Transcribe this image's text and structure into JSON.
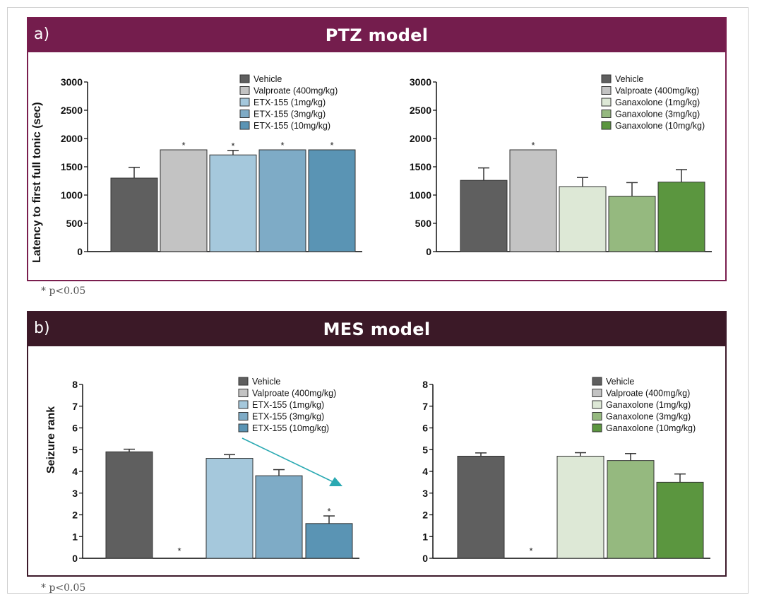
{
  "panel_a": {
    "letter": "a)",
    "title": "PTZ model",
    "note": "* p<0.05"
  },
  "panel_b": {
    "letter": "b)",
    "title": "MES model",
    "note": "* p<0.05"
  },
  "colors": {
    "vehicle": "#5f5f5f",
    "valproate": "#c3c3c3",
    "etx1": "#a5c8dc",
    "etx3": "#7eabc6",
    "etx10": "#5a94b4",
    "gan1": "#dde8d6",
    "gan3": "#95b97f",
    "gan10": "#5b963f",
    "arrow": "#2aa9b2"
  },
  "chart_data": [
    {
      "type": "bar",
      "ylabel": "Latency to first full tonic (sec)",
      "ylim": [
        0,
        3000
      ],
      "yticks": [
        "0",
        "500",
        "1000",
        "1500",
        "2000",
        "2500",
        "3000"
      ],
      "categories": [
        "Vehicle",
        "Valproate (400mg/kg)",
        "ETX-155 (1mg/kg)",
        "ETX-155 (3mg/kg)",
        "ETX-155 (10mg/kg)"
      ],
      "legend": [
        "Vehicle",
        "Valproate (400mg/kg)",
        "ETX-155 (1mg/kg)",
        "ETX-155 (3mg/kg)",
        "ETX-155 (10mg/kg)"
      ],
      "values": [
        1300,
        1800,
        1710,
        1800,
        1800
      ],
      "errors": [
        190,
        0,
        80,
        0,
        0
      ],
      "significant": [
        false,
        true,
        true,
        true,
        true
      ],
      "colors": [
        "vehicle",
        "valproate",
        "etx1",
        "etx3",
        "etx10"
      ],
      "star": "*"
    },
    {
      "type": "bar",
      "ylim": [
        0,
        3000
      ],
      "yticks": [
        "0",
        "500",
        "1000",
        "1500",
        "2000",
        "2500",
        "3000"
      ],
      "categories": [
        "Vehicle",
        "Valproate (400mg/kg)",
        "Ganaxolone (1mg/kg)",
        "Ganaxolone (3mg/kg)",
        "Ganaxolone (10mg/kg)"
      ],
      "legend": [
        "Vehicle",
        "Valproate (400mg/kg)",
        "Ganaxolone (1mg/kg)",
        "Ganaxolone (3mg/kg)",
        "Ganaxolone (10mg/kg)"
      ],
      "values": [
        1260,
        1800,
        1150,
        980,
        1230
      ],
      "errors": [
        220,
        0,
        160,
        240,
        220
      ],
      "significant": [
        false,
        true,
        false,
        false,
        false
      ],
      "colors": [
        "vehicle",
        "valproate",
        "gan1",
        "gan3",
        "gan10"
      ],
      "star": "*"
    },
    {
      "type": "bar",
      "ylabel": "Seizure rank",
      "ylim": [
        0,
        8
      ],
      "yticks": [
        "0",
        "1",
        "2",
        "3",
        "4",
        "5",
        "6",
        "7",
        "8"
      ],
      "categories": [
        "Vehicle",
        "Valproate (400mg/kg)",
        "ETX-155 (1mg/kg)",
        "ETX-155 (3mg/kg)",
        "ETX-155 (10mg/kg)"
      ],
      "legend": [
        "Vehicle",
        "Valproate (400mg/kg)",
        "ETX-155 (1mg/kg)",
        "ETX-155 (3mg/kg)",
        "ETX-155 (10mg/kg)"
      ],
      "values": [
        4.9,
        0,
        4.6,
        3.8,
        1.6
      ],
      "errors": [
        0.12,
        0,
        0.17,
        0.28,
        0.35
      ],
      "significant": [
        false,
        true,
        false,
        false,
        true
      ],
      "colors": [
        "vehicle",
        "valproate",
        "etx1",
        "etx3",
        "etx10"
      ],
      "star": "*",
      "trend_arrow": true
    },
    {
      "type": "bar",
      "ylim": [
        0,
        8
      ],
      "yticks": [
        "0",
        "1",
        "2",
        "3",
        "4",
        "5",
        "6",
        "7",
        "8"
      ],
      "categories": [
        "Vehicle",
        "Valproate (400mg/kg)",
        "Ganaxolone (1mg/kg)",
        "Ganaxolone (3mg/kg)",
        "Ganaxolone (10mg/kg)"
      ],
      "legend": [
        "Vehicle",
        "Valproate (400mg/kg)",
        "Ganaxolone (1mg/kg)",
        "Ganaxolone (3mg/kg)",
        "Ganaxolone (10mg/kg)"
      ],
      "values": [
        4.7,
        0,
        4.7,
        4.5,
        3.5
      ],
      "errors": [
        0.15,
        0,
        0.16,
        0.32,
        0.38
      ],
      "significant": [
        false,
        true,
        false,
        false,
        false
      ],
      "colors": [
        "vehicle",
        "valproate",
        "gan1",
        "gan3",
        "gan10"
      ],
      "star": "*"
    }
  ]
}
